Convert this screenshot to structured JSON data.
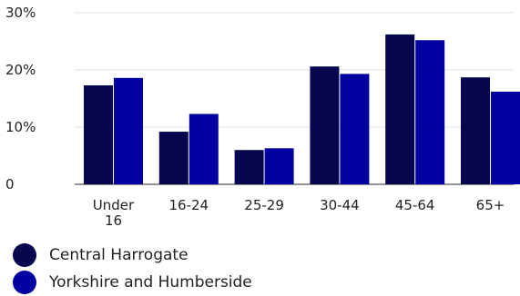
{
  "chart_data": {
    "type": "bar",
    "categories": [
      "Under 16",
      "16-24",
      "25-29",
      "30-44",
      "45-64",
      "65+"
    ],
    "category_lines": [
      [
        "Under",
        "16"
      ],
      [
        "16-24"
      ],
      [
        "25-29"
      ],
      [
        "30-44"
      ],
      [
        "45-64"
      ],
      [
        "65+"
      ]
    ],
    "series": [
      {
        "name": "Central Harrogate",
        "color": "#06074f",
        "values": [
          17.3,
          9.2,
          6.0,
          20.6,
          26.2,
          18.7
        ]
      },
      {
        "name": "Yorkshire and Humberside",
        "color": "#0202a0",
        "values": [
          18.6,
          12.3,
          6.3,
          19.3,
          25.2,
          16.2
        ]
      }
    ],
    "y_ticks": [
      {
        "value": 0,
        "label": "0"
      },
      {
        "value": 10,
        "label": "10%"
      },
      {
        "value": 20,
        "label": "20%"
      },
      {
        "value": 30,
        "label": "30%"
      }
    ],
    "ylim": [
      0,
      30
    ],
    "grid": true,
    "legend_position": "bottom-left"
  }
}
